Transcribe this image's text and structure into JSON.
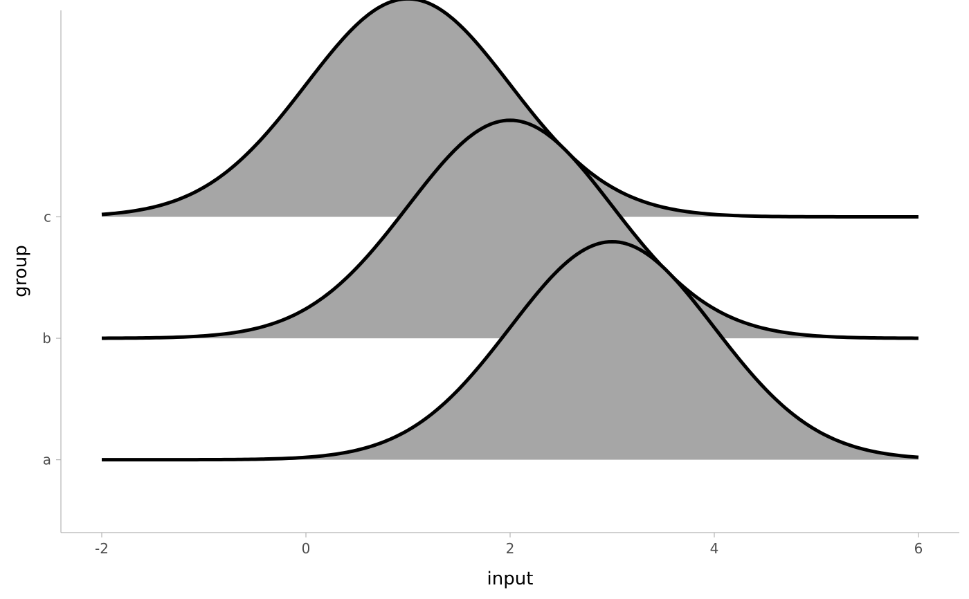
{
  "chart_data": {
    "type": "area",
    "subtype": "ridgeline",
    "xlabel": "input",
    "ylabel": "group",
    "xlim": [
      -2.4,
      6.4
    ],
    "x_ticks": [
      -2,
      0,
      2,
      4,
      6
    ],
    "x_tick_labels": [
      "-2",
      "0",
      "2",
      "4",
      "6"
    ],
    "categories": [
      "a",
      "b",
      "c"
    ],
    "x_range": [
      -2,
      6
    ],
    "series": [
      {
        "group": "a",
        "distribution": "normal",
        "mean": 3,
        "sd": 1,
        "peak_height": 0.4
      },
      {
        "group": "b",
        "distribution": "normal",
        "mean": 2,
        "sd": 1,
        "peak_height": 0.4
      },
      {
        "group": "c",
        "distribution": "normal",
        "mean": 1,
        "sd": 1,
        "peak_height": 0.4
      }
    ],
    "ridge_height_in_group_units": 1.8,
    "grid": false,
    "legend": "none",
    "fill_color": "#a6a6a6",
    "line_color": "#000000"
  }
}
